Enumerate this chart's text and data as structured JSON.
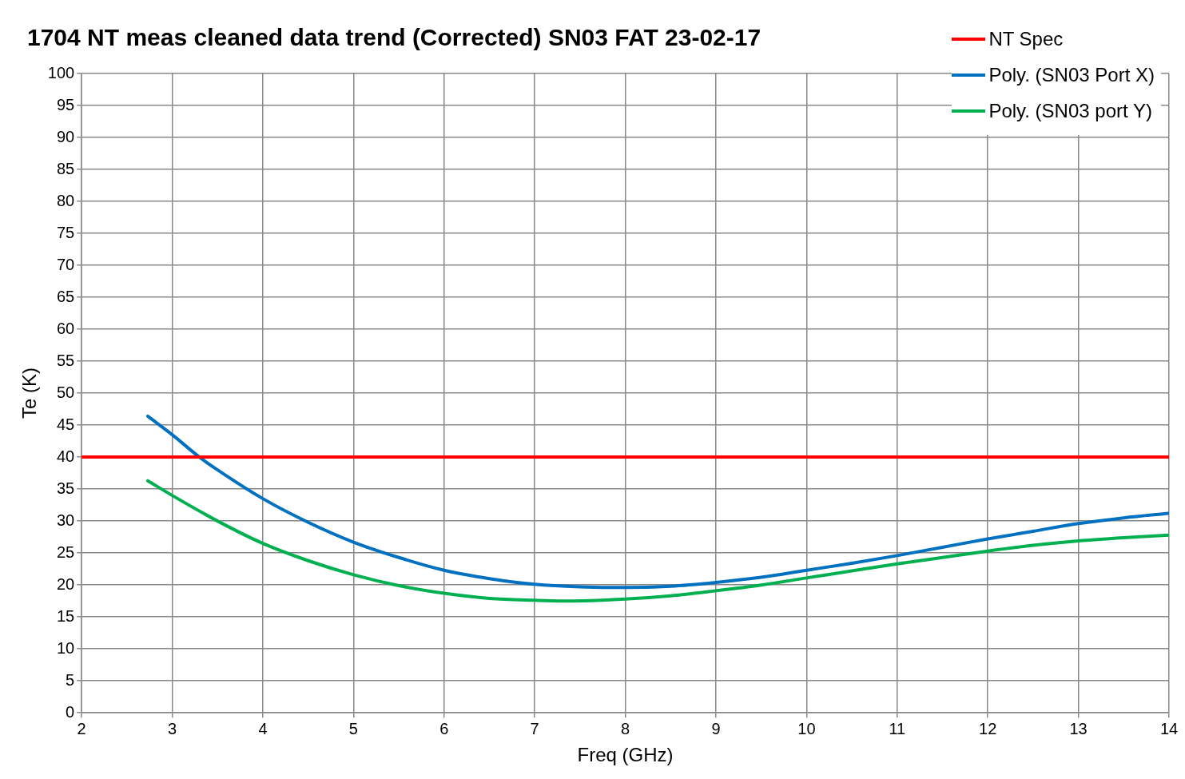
{
  "chart_data": {
    "type": "line",
    "title": "1704 NT meas cleaned data trend (Corrected) SN03 FAT 23-02-17",
    "xlabel": "Freq (GHz)",
    "ylabel": "Te (K)",
    "xlim": [
      2,
      14
    ],
    "xticks": [
      2,
      3,
      4,
      5,
      6,
      7,
      8,
      9,
      10,
      11,
      12,
      13,
      14
    ],
    "ylim": [
      0,
      100
    ],
    "yticks": [
      0,
      5,
      10,
      15,
      20,
      25,
      30,
      35,
      40,
      45,
      50,
      55,
      60,
      65,
      70,
      75,
      80,
      85,
      90,
      95,
      100
    ],
    "grid": true,
    "legend": "top right",
    "marker": "none",
    "line_style": "solid",
    "series": [
      {
        "name": "NT Spec",
        "color": "#ff0000",
        "x": [
          2,
          14
        ],
        "values": [
          40,
          40
        ]
      },
      {
        "name": "Poly. (SN03 Port X)",
        "color": "#0070c0",
        "x": [
          2.73,
          3,
          3.3,
          3.5,
          4,
          4.5,
          5,
          5.5,
          6,
          6.5,
          7,
          7.5,
          8,
          8.5,
          9,
          9.5,
          10,
          10.5,
          11,
          11.5,
          12,
          12.5,
          13,
          13.5,
          14
        ],
        "values": [
          46.4,
          43.5,
          40,
          38,
          33.5,
          29.8,
          26.7,
          24.3,
          22.3,
          21,
          20.1,
          19.7,
          19.6,
          19.8,
          20.4,
          21.2,
          22.3,
          23.4,
          24.6,
          25.9,
          27.2,
          28.4,
          29.6,
          30.5,
          31.2
        ]
      },
      {
        "name": "Poly. (SN03 port Y)",
        "color": "#00b050",
        "x": [
          2.73,
          3,
          3.5,
          4,
          4.5,
          5,
          5.5,
          6,
          6.5,
          7,
          7.3,
          8,
          8.5,
          9,
          9.5,
          10,
          10.5,
          11,
          11.5,
          12,
          12.5,
          13,
          13.5,
          14
        ],
        "values": [
          36.3,
          34,
          30,
          26.5,
          23.8,
          21.6,
          19.9,
          18.7,
          17.9,
          17.6,
          17.5,
          17.8,
          18.3,
          19.1,
          20,
          21.1,
          22.2,
          23.3,
          24.3,
          25.3,
          26.2,
          26.9,
          27.4,
          27.8
        ]
      }
    ]
  }
}
